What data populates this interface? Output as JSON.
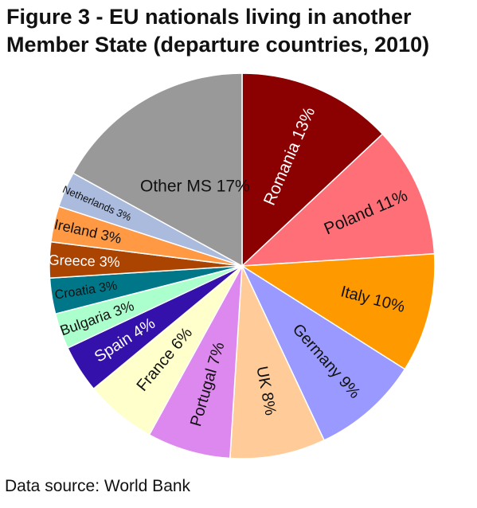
{
  "title_lines": [
    "Figure 3 - EU nationals living in another",
    "Member State (departure countries, 2010)"
  ],
  "source": "Data source: World Bank",
  "chart_data": {
    "type": "pie",
    "title": "Figure 3 - EU nationals living in another Member State (departure countries, 2010)",
    "unit": "%",
    "slices": [
      {
        "label": "Romania 13%",
        "value": 13,
        "color": "#8b0000",
        "text_color": "#ffffff"
      },
      {
        "label": "Poland 11%",
        "value": 11,
        "color": "#ff6f77",
        "text_color": "#111111"
      },
      {
        "label": "Italy 10%",
        "value": 10,
        "color": "#ff9900",
        "text_color": "#111111"
      },
      {
        "label": "Germany 9%",
        "value": 9,
        "color": "#9999ff",
        "text_color": "#111111"
      },
      {
        "label": "UK 8%",
        "value": 8,
        "color": "#ffcc99",
        "text_color": "#111111"
      },
      {
        "label": "Portugal 7%",
        "value": 7,
        "color": "#dd88ee",
        "text_color": "#111111"
      },
      {
        "label": "France 6%",
        "value": 6,
        "color": "#ffffcc",
        "text_color": "#111111"
      },
      {
        "label": "Spain 4%",
        "value": 4,
        "color": "#3311aa",
        "text_color": "#ffffff"
      },
      {
        "label": "Bulgaria 3%",
        "value": 3,
        "color": "#aaffcc",
        "text_color": "#111111"
      },
      {
        "label": "Croatia 3%",
        "value": 3,
        "color": "#007788",
        "text_color": "#111111"
      },
      {
        "label": "Greece 3%",
        "value": 3,
        "color": "#aa4400",
        "text_color": "#ffffff"
      },
      {
        "label": "Ireland 3%",
        "value": 3,
        "color": "#ff9944",
        "text_color": "#111111"
      },
      {
        "label": "Netherlands 3%",
        "value": 3,
        "color": "#aabbdd",
        "text_color": "#111111"
      },
      {
        "label": "Other MS 17%",
        "value": 17,
        "color": "#999999",
        "text_color": "#111111"
      }
    ]
  }
}
